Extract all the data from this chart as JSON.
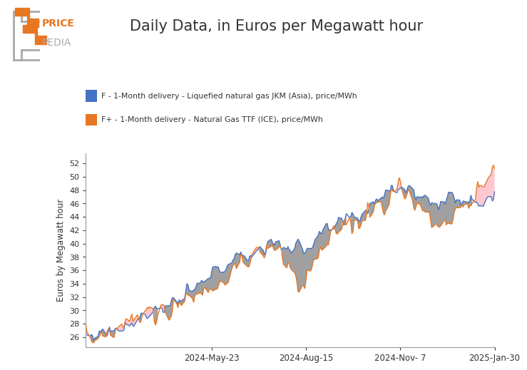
{
  "title": "Daily Data, in Euros per Megawatt hour",
  "ylabel": "Euros by Megawatt hour",
  "legend_jkm": "F - 1-Month delivery - Liquefied natural gas JKM (Asia), price/MWh",
  "legend_ttf": "F+ - 1-Month delivery - Natural Gas TTF (ICE), price/MWh",
  "color_jkm": "#4472c4",
  "color_ttf": "#e87722",
  "color_fill_jkm_above": "#808080",
  "color_fill_ttf_above": "#ffb6c1",
  "ylim": [
    24.5,
    53.5
  ],
  "yticks": [
    26,
    28,
    30,
    32,
    34,
    36,
    38,
    40,
    42,
    44,
    46,
    48,
    50,
    52
  ],
  "xtick_labels": [
    "2024-May-23",
    "2024-Aug-15",
    "2024-Nov- 7",
    "2025-Jan-30"
  ],
  "background_color": "#ffffff",
  "logo_price_color": "#e87722",
  "logo_pedia_color": "#aaaaaa",
  "logo_bracket_color": "#aaaaaa"
}
